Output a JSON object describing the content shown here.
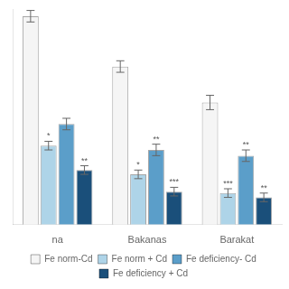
{
  "chart_data": {
    "type": "bar",
    "categories": [
      "na",
      "Bakanas",
      "Barakat"
    ],
    "series": [
      {
        "name": "Fe norm-Cd",
        "color": "#f5f5f5",
        "values": [
          1.45,
          1.1,
          0.85
        ],
        "errors": [
          0.04,
          0.04,
          0.05
        ],
        "significance": [
          null,
          null,
          null
        ]
      },
      {
        "name": "Fe norm + Cd",
        "color": "#aed4e8",
        "values": [
          0.55,
          0.35,
          0.22
        ],
        "errors": [
          0.03,
          0.03,
          0.03
        ],
        "significance": [
          "*",
          "*",
          "***"
        ]
      },
      {
        "name": "Fe deficiency- Cd",
        "color": "#5b9ec9",
        "values": [
          0.7,
          0.52,
          0.48
        ],
        "errors": [
          0.04,
          0.04,
          0.04
        ],
        "significance": [
          null,
          "**",
          "**"
        ]
      },
      {
        "name": "Fe deficiency + Cd",
        "color": "#1a4f7a",
        "values": [
          0.38,
          0.23,
          0.19
        ],
        "errors": [
          0.03,
          0.03,
          0.03
        ],
        "significance": [
          "**",
          "***",
          "**"
        ]
      }
    ],
    "ylim": [
      0,
      1.5
    ],
    "grid": false,
    "legend": "bottom",
    "tick_labels": "x"
  }
}
